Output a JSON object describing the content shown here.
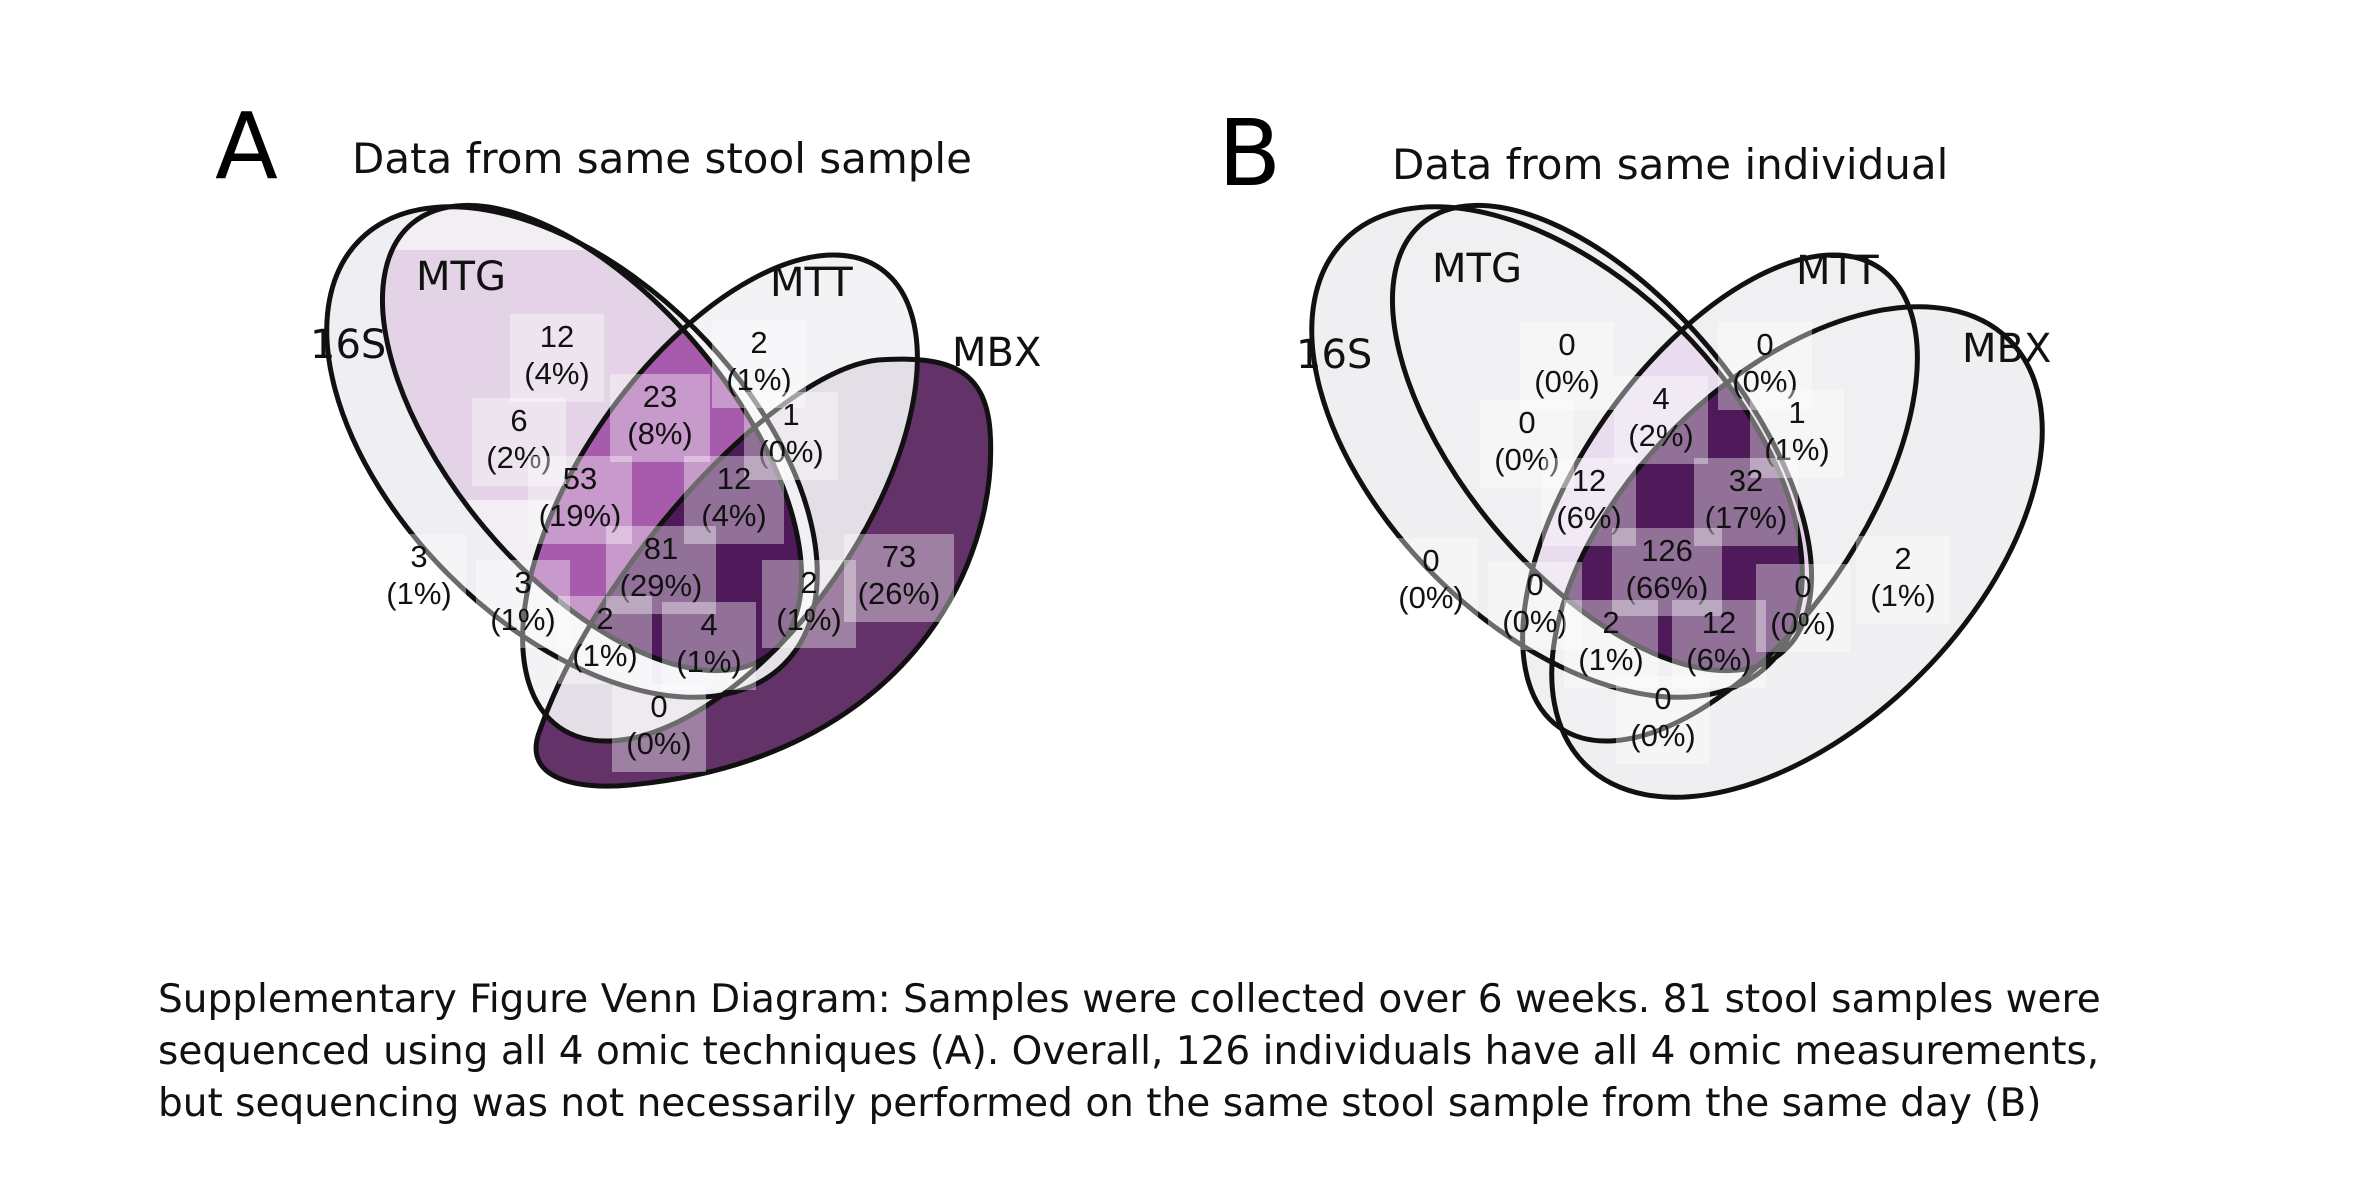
{
  "caption": {
    "line1": "Supplementary Figure Venn Diagram: Samples were collected over 6 weeks. 81 stool samples were",
    "line2": "sequenced using all 4 omic techniques (A). Overall, 126 individuals have all 4 omic measurements,",
    "line3": "but sequencing was not necessarily performed on the same stool sample from the same day (B)"
  },
  "panels": [
    {
      "letter": "A",
      "title": "Data from same stool sample",
      "sets": [
        "16S",
        "MTG",
        "MTT",
        "MBX"
      ],
      "regions": [
        {
          "sets": [
            "16S"
          ],
          "count": "3",
          "pct": "(1%)"
        },
        {
          "sets": [
            "MTG"
          ],
          "count": "12",
          "pct": "(4%)"
        },
        {
          "sets": [
            "MTT"
          ],
          "count": "2",
          "pct": "(1%)"
        },
        {
          "sets": [
            "MBX"
          ],
          "count": "73",
          "pct": "(26%)"
        },
        {
          "sets": [
            "16S",
            "MTG"
          ],
          "count": "6",
          "pct": "(2%)"
        },
        {
          "sets": [
            "MTG",
            "MTT"
          ],
          "count": "23",
          "pct": "(8%)"
        },
        {
          "sets": [
            "MTT",
            "MBX"
          ],
          "count": "1",
          "pct": "(0%)"
        },
        {
          "sets": [
            "16S",
            "MTG",
            "MTT"
          ],
          "count": "53",
          "pct": "(19%)"
        },
        {
          "sets": [
            "MTG",
            "MTT",
            "MBX"
          ],
          "count": "12",
          "pct": "(4%)"
        },
        {
          "sets": [
            "16S",
            "MTT"
          ],
          "count": "3",
          "pct": "(1%)"
        },
        {
          "sets": [
            "MTG",
            "MBX"
          ],
          "count": "2",
          "pct": "(1%)"
        },
        {
          "sets": [
            "16S",
            "MTG",
            "MTT",
            "MBX"
          ],
          "count": "81",
          "pct": "(29%)"
        },
        {
          "sets": [
            "16S",
            "MTT",
            "MBX"
          ],
          "count": "2",
          "pct": "(1%)"
        },
        {
          "sets": [
            "16S",
            "MTG",
            "MBX"
          ],
          "count": "4",
          "pct": "(1%)"
        },
        {
          "sets": [
            "16S",
            "MBX"
          ],
          "count": "0",
          "pct": "(0%)"
        }
      ]
    },
    {
      "letter": "B",
      "title": "Data from same individual",
      "sets": [
        "16S",
        "MTG",
        "MTT",
        "MBX"
      ],
      "regions": [
        {
          "sets": [
            "16S"
          ],
          "count": "0",
          "pct": "(0%)"
        },
        {
          "sets": [
            "MTG"
          ],
          "count": "0",
          "pct": "(0%)"
        },
        {
          "sets": [
            "MTT"
          ],
          "count": "0",
          "pct": "(0%)"
        },
        {
          "sets": [
            "MBX"
          ],
          "count": "2",
          "pct": "(1%)"
        },
        {
          "sets": [
            "16S",
            "MTG"
          ],
          "count": "0",
          "pct": "(0%)"
        },
        {
          "sets": [
            "MTG",
            "MTT"
          ],
          "count": "4",
          "pct": "(2%)"
        },
        {
          "sets": [
            "MTT",
            "MBX"
          ],
          "count": "1",
          "pct": "(1%)"
        },
        {
          "sets": [
            "16S",
            "MTG",
            "MTT"
          ],
          "count": "12",
          "pct": "(6%)"
        },
        {
          "sets": [
            "MTG",
            "MTT",
            "MBX"
          ],
          "count": "32",
          "pct": "(17%)"
        },
        {
          "sets": [
            "16S",
            "MTT"
          ],
          "count": "0",
          "pct": "(0%)"
        },
        {
          "sets": [
            "MTG",
            "MBX"
          ],
          "count": "0",
          "pct": "(0%)"
        },
        {
          "sets": [
            "16S",
            "MTG",
            "MTT",
            "MBX"
          ],
          "count": "126",
          "pct": "(66%)"
        },
        {
          "sets": [
            "16S",
            "MTT",
            "MBX"
          ],
          "count": "2",
          "pct": "(1%)"
        },
        {
          "sets": [
            "16S",
            "MTG",
            "MBX"
          ],
          "count": "12",
          "pct": "(6%)"
        },
        {
          "sets": [
            "16S",
            "MBX"
          ],
          "count": "0",
          "pct": "(0%)"
        }
      ]
    }
  ],
  "colors": {
    "outline": "#111111",
    "ramp_light": "#efeef2",
    "ramp_mid": "#a35aa9",
    "ramp_dark": "#4f1a59"
  }
}
